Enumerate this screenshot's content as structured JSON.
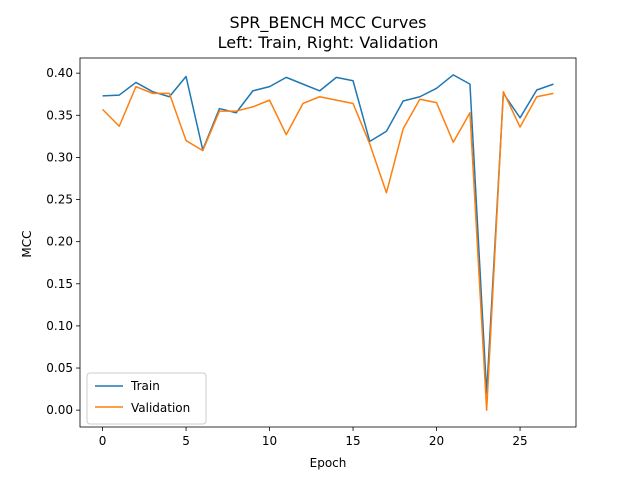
{
  "chart_data": {
    "type": "line",
    "title_lines": [
      "SPR_BENCH MCC Curves",
      "Left: Train, Right: Validation"
    ],
    "xlabel": "Epoch",
    "ylabel": "MCC",
    "xlim": [
      -1.35,
      28.35
    ],
    "ylim": [
      -0.02,
      0.418
    ],
    "xticks": [
      0,
      5,
      10,
      15,
      20,
      25
    ],
    "yticks": [
      0.0,
      0.05,
      0.1,
      0.15,
      0.2,
      0.25,
      0.3,
      0.35,
      0.4
    ],
    "xtick_labels": [
      "0",
      "5",
      "10",
      "15",
      "20",
      "25"
    ],
    "ytick_labels": [
      "0.00",
      "0.05",
      "0.10",
      "0.15",
      "0.20",
      "0.25",
      "0.30",
      "0.35",
      "0.40"
    ],
    "legend_position": "lower-left",
    "grid": false,
    "x": [
      0,
      1,
      2,
      3,
      4,
      5,
      6,
      7,
      8,
      9,
      10,
      11,
      12,
      13,
      14,
      15,
      16,
      17,
      18,
      19,
      20,
      21,
      22,
      23,
      24,
      25,
      26,
      27
    ],
    "series": [
      {
        "name": "Train",
        "color": "#1f77b4",
        "values": [
          0.373,
          0.374,
          0.389,
          0.378,
          0.372,
          0.396,
          0.309,
          0.358,
          0.353,
          0.379,
          0.384,
          0.395,
          0.387,
          0.379,
          0.395,
          0.391,
          0.319,
          0.331,
          0.367,
          0.372,
          0.382,
          0.398,
          0.387,
          0.02,
          0.376,
          0.347,
          0.38,
          0.387
        ]
      },
      {
        "name": "Validation",
        "color": "#ff7f0e",
        "values": [
          0.357,
          0.337,
          0.384,
          0.376,
          0.376,
          0.32,
          0.308,
          0.355,
          0.355,
          0.36,
          0.368,
          0.327,
          0.364,
          0.372,
          0.368,
          0.364,
          0.316,
          0.258,
          0.334,
          0.369,
          0.365,
          0.318,
          0.353,
          0.0,
          0.378,
          0.336,
          0.372,
          0.376
        ]
      }
    ]
  }
}
